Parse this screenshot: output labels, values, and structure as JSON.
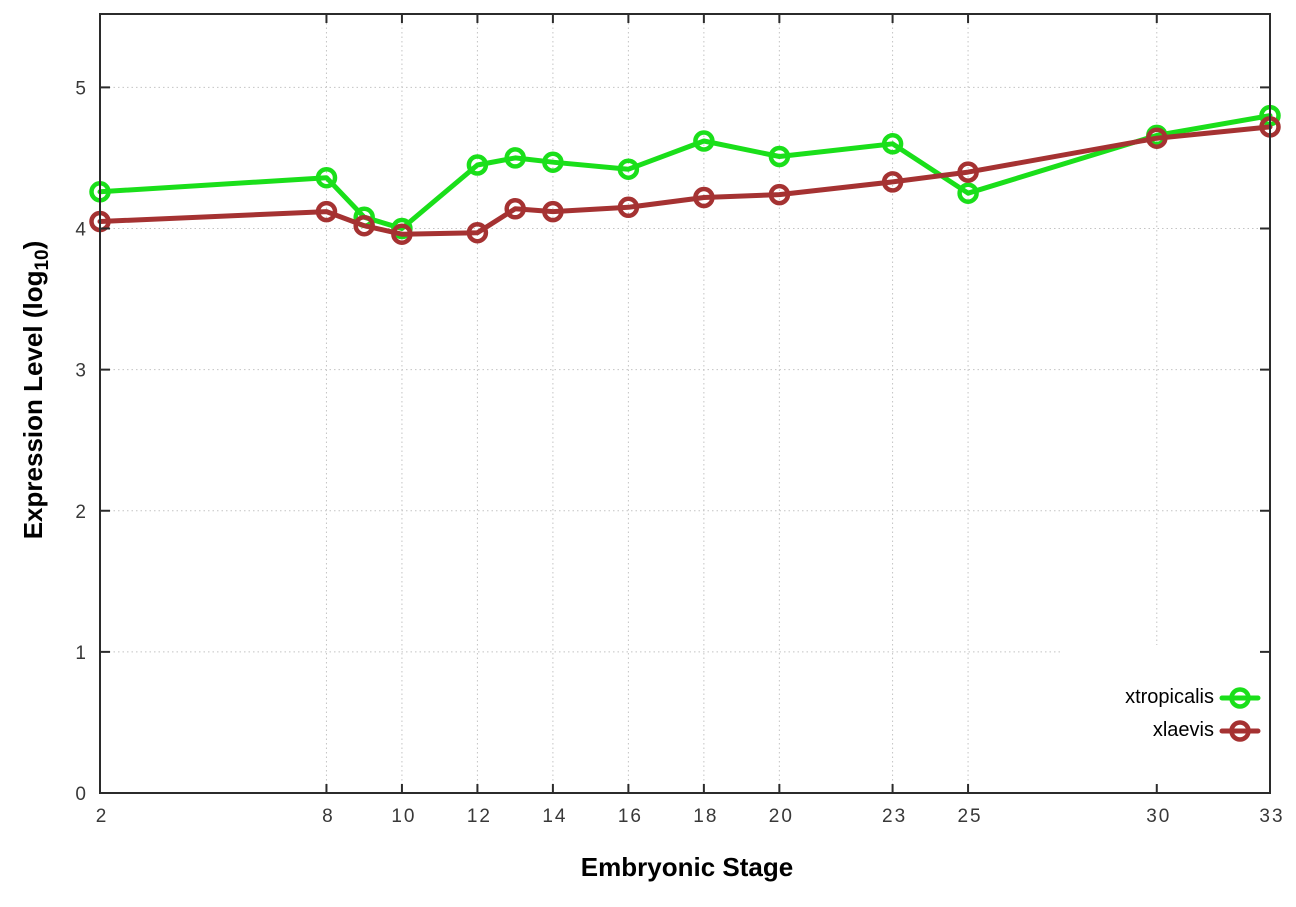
{
  "figure": {
    "background": "#ffffff",
    "border_color": "#2b2b2b",
    "grid_color": "#c4c4c4",
    "tick_label_color": "#383838"
  },
  "chart_data": {
    "type": "line",
    "title": "",
    "xlabel": "Embryonic Stage",
    "ylabel": "Expression Level (log10)",
    "ylabel_prefix": "Expression Level (log",
    "ylabel_sub": "10",
    "ylabel_suffix": ")",
    "x": [
      2,
      8,
      9,
      10,
      12,
      13,
      14,
      16,
      18,
      20,
      23,
      25,
      30,
      33
    ],
    "xticks": [
      2,
      8,
      10,
      12,
      14,
      16,
      18,
      20,
      23,
      25,
      30,
      33
    ],
    "yticks": [
      0,
      1,
      2,
      3,
      4,
      5
    ],
    "xlim": [
      2,
      33
    ],
    "ylim": [
      0,
      5.52
    ],
    "grid": true,
    "legend_position": "inside-bottom-right",
    "series": [
      {
        "name": "xtropicalis",
        "color": "#1adf1a",
        "marker": "open-circle",
        "values": [
          4.26,
          4.36,
          4.08,
          4.0,
          4.45,
          4.5,
          4.47,
          4.42,
          4.62,
          4.51,
          4.6,
          4.25,
          4.66,
          4.8
        ]
      },
      {
        "name": "xlaevis",
        "color": "#a53232",
        "marker": "open-circle",
        "values": [
          4.05,
          4.12,
          4.02,
          3.96,
          3.97,
          4.14,
          4.12,
          4.15,
          4.22,
          4.24,
          4.33,
          4.4,
          4.64,
          4.72
        ]
      }
    ]
  }
}
